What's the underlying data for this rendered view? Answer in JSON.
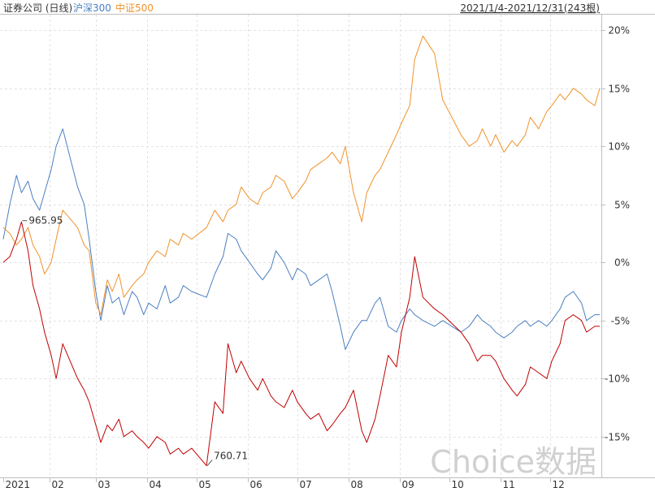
{
  "header": {
    "title": "证券公司 (日线)",
    "legend": [
      {
        "name": "沪深300",
        "color": "#4a7fc1"
      },
      {
        "name": "中证500",
        "color": "#f0922a"
      }
    ],
    "range": "2021/1/4-2021/12/31(243根)"
  },
  "watermark": "Choice数据",
  "chart_data": {
    "type": "line",
    "x_tick_labels": [
      "2021",
      "02",
      "03",
      "04",
      "05",
      "06",
      "07",
      "08",
      "09",
      "10",
      "11",
      "12"
    ],
    "y_tick_labels": [
      "20%",
      "15%",
      "10%",
      "5%",
      "0%",
      "-5%",
      "-10%",
      "-15%"
    ],
    "y_tick_values": [
      20,
      15,
      10,
      5,
      0,
      -5,
      -10,
      -15
    ],
    "y_tick_colors": [
      "#333333",
      "#333333",
      "#333333",
      "#333333",
      "#333333",
      "#1a8a1a",
      "#1a8a1a",
      "#1a8a1a"
    ],
    "ylim": [
      -18.3,
      21.2
    ],
    "annotations": [
      {
        "text": "965.95",
        "x": "2021-01-15",
        "y": 3.6
      },
      {
        "text": "760.71",
        "x": "2021-05-07",
        "y": -17.5
      }
    ],
    "series": [
      {
        "name": "证券公司",
        "color": "#c00000",
        "x": [
          "2021-01-04",
          "2021-01-08",
          "2021-01-12",
          "2021-01-15",
          "2021-01-19",
          "2021-01-22",
          "2021-01-26",
          "2021-01-29",
          "2021-02-02",
          "2021-02-05",
          "2021-02-09",
          "2021-02-18",
          "2021-02-22",
          "2021-02-25",
          "2021-03-01",
          "2021-03-04",
          "2021-03-08",
          "2021-03-11",
          "2021-03-15",
          "2021-03-18",
          "2021-03-23",
          "2021-03-26",
          "2021-03-30",
          "2021-04-02",
          "2021-04-07",
          "2021-04-12",
          "2021-04-15",
          "2021-04-20",
          "2021-04-23",
          "2021-04-28",
          "2021-05-07",
          "2021-05-12",
          "2021-05-17",
          "2021-05-20",
          "2021-05-25",
          "2021-05-28",
          "2021-06-02",
          "2021-06-07",
          "2021-06-10",
          "2021-06-15",
          "2021-06-18",
          "2021-06-23",
          "2021-06-28",
          "2021-07-01",
          "2021-07-06",
          "2021-07-09",
          "2021-07-14",
          "2021-07-19",
          "2021-07-22",
          "2021-07-27",
          "2021-07-30",
          "2021-08-04",
          "2021-08-09",
          "2021-08-12",
          "2021-08-17",
          "2021-08-20",
          "2021-08-25",
          "2021-08-30",
          "2021-09-02",
          "2021-09-07",
          "2021-09-10",
          "2021-09-15",
          "2021-09-22",
          "2021-09-27",
          "2021-10-08",
          "2021-10-13",
          "2021-10-18",
          "2021-10-21",
          "2021-10-26",
          "2021-10-29",
          "2021-11-03",
          "2021-11-08",
          "2021-11-11",
          "2021-11-16",
          "2021-11-19",
          "2021-11-24",
          "2021-11-29",
          "2021-12-02",
          "2021-12-07",
          "2021-12-10",
          "2021-12-15",
          "2021-12-20",
          "2021-12-23",
          "2021-12-28",
          "2021-12-31"
        ],
        "values": [
          0.0,
          0.5,
          2.0,
          3.5,
          1.0,
          -2.0,
          -4.0,
          -6.0,
          -8.0,
          -10.0,
          -7.0,
          -10.0,
          -11.0,
          -12.0,
          -14.0,
          -15.5,
          -14.0,
          -14.5,
          -13.5,
          -15.0,
          -14.5,
          -15.0,
          -15.5,
          -16.0,
          -15.0,
          -15.5,
          -16.5,
          -16.0,
          -16.5,
          -16.0,
          -17.5,
          -12.0,
          -13.0,
          -7.0,
          -9.5,
          -8.5,
          -10.0,
          -11.0,
          -10.0,
          -11.5,
          -12.0,
          -12.5,
          -11.0,
          -12.0,
          -13.0,
          -13.5,
          -13.0,
          -14.5,
          -14.0,
          -13.0,
          -12.5,
          -11.0,
          -14.5,
          -15.5,
          -13.5,
          -11.5,
          -8.0,
          -9.0,
          -6.0,
          -3.0,
          0.5,
          -3.0,
          -4.0,
          -4.5,
          -6.0,
          -7.0,
          -8.5,
          -8.0,
          -8.0,
          -8.5,
          -10.0,
          -11.0,
          -11.5,
          -10.5,
          -9.0,
          -9.5,
          -10.0,
          -8.5,
          -7.0,
          -5.0,
          -4.5,
          -5.0,
          -6.0,
          -5.5,
          -5.5
        ]
      },
      {
        "name": "沪深300",
        "color": "#4a7fc1",
        "x": [
          "2021-01-04",
          "2021-01-08",
          "2021-01-12",
          "2021-01-15",
          "2021-01-19",
          "2021-01-22",
          "2021-01-26",
          "2021-01-29",
          "2021-02-02",
          "2021-02-05",
          "2021-02-09",
          "2021-02-18",
          "2021-02-22",
          "2021-02-25",
          "2021-03-01",
          "2021-03-04",
          "2021-03-08",
          "2021-03-11",
          "2021-03-15",
          "2021-03-18",
          "2021-03-23",
          "2021-03-26",
          "2021-03-30",
          "2021-04-02",
          "2021-04-07",
          "2021-04-12",
          "2021-04-15",
          "2021-04-20",
          "2021-04-23",
          "2021-04-28",
          "2021-05-07",
          "2021-05-12",
          "2021-05-17",
          "2021-05-20",
          "2021-05-25",
          "2021-05-28",
          "2021-06-02",
          "2021-06-07",
          "2021-06-10",
          "2021-06-15",
          "2021-06-18",
          "2021-06-23",
          "2021-06-28",
          "2021-07-01",
          "2021-07-06",
          "2021-07-09",
          "2021-07-14",
          "2021-07-19",
          "2021-07-22",
          "2021-07-27",
          "2021-07-30",
          "2021-08-04",
          "2021-08-09",
          "2021-08-12",
          "2021-08-17",
          "2021-08-20",
          "2021-08-25",
          "2021-08-30",
          "2021-09-02",
          "2021-09-07",
          "2021-09-10",
          "2021-09-15",
          "2021-09-22",
          "2021-09-27",
          "2021-10-08",
          "2021-10-13",
          "2021-10-18",
          "2021-10-21",
          "2021-10-26",
          "2021-10-29",
          "2021-11-03",
          "2021-11-08",
          "2021-11-11",
          "2021-11-16",
          "2021-11-19",
          "2021-11-24",
          "2021-11-29",
          "2021-12-02",
          "2021-12-07",
          "2021-12-10",
          "2021-12-15",
          "2021-12-20",
          "2021-12-23",
          "2021-12-28",
          "2021-12-31"
        ],
        "values": [
          2.0,
          5.0,
          7.5,
          6.0,
          7.0,
          5.5,
          4.5,
          6.0,
          8.0,
          10.0,
          11.5,
          6.5,
          5.0,
          2.0,
          -2.5,
          -5.0,
          -2.0,
          -3.5,
          -3.0,
          -4.5,
          -2.5,
          -3.0,
          -4.5,
          -3.5,
          -4.0,
          -2.0,
          -3.5,
          -3.0,
          -2.0,
          -2.5,
          -3.0,
          -1.0,
          0.5,
          2.5,
          2.0,
          1.0,
          0.0,
          -1.0,
          -1.5,
          -0.5,
          1.0,
          0.0,
          -1.5,
          -0.5,
          -1.0,
          -2.0,
          -1.5,
          -1.0,
          -2.5,
          -5.5,
          -7.5,
          -6.0,
          -5.0,
          -5.0,
          -3.5,
          -3.0,
          -5.5,
          -6.0,
          -5.0,
          -4.0,
          -4.5,
          -5.0,
          -5.5,
          -5.0,
          -6.0,
          -5.5,
          -4.5,
          -5.0,
          -5.5,
          -6.0,
          -6.5,
          -6.0,
          -5.5,
          -5.0,
          -5.5,
          -5.0,
          -5.5,
          -5.0,
          -4.0,
          -3.0,
          -2.5,
          -3.5,
          -5.0,
          -4.5,
          -4.5
        ]
      },
      {
        "name": "中证500",
        "color": "#f0922a",
        "x": [
          "2021-01-04",
          "2021-01-08",
          "2021-01-12",
          "2021-01-15",
          "2021-01-19",
          "2021-01-22",
          "2021-01-26",
          "2021-01-29",
          "2021-02-02",
          "2021-02-05",
          "2021-02-09",
          "2021-02-18",
          "2021-02-22",
          "2021-02-25",
          "2021-03-01",
          "2021-03-04",
          "2021-03-08",
          "2021-03-11",
          "2021-03-15",
          "2021-03-18",
          "2021-03-23",
          "2021-03-26",
          "2021-03-30",
          "2021-04-02",
          "2021-04-07",
          "2021-04-12",
          "2021-04-15",
          "2021-04-20",
          "2021-04-23",
          "2021-04-28",
          "2021-05-07",
          "2021-05-12",
          "2021-05-17",
          "2021-05-20",
          "2021-05-25",
          "2021-05-28",
          "2021-06-02",
          "2021-06-07",
          "2021-06-10",
          "2021-06-15",
          "2021-06-18",
          "2021-06-23",
          "2021-06-28",
          "2021-07-01",
          "2021-07-06",
          "2021-07-09",
          "2021-07-14",
          "2021-07-19",
          "2021-07-22",
          "2021-07-27",
          "2021-07-30",
          "2021-08-04",
          "2021-08-09",
          "2021-08-12",
          "2021-08-17",
          "2021-08-20",
          "2021-08-25",
          "2021-08-30",
          "2021-09-02",
          "2021-09-07",
          "2021-09-10",
          "2021-09-15",
          "2021-09-22",
          "2021-09-27",
          "2021-10-08",
          "2021-10-13",
          "2021-10-18",
          "2021-10-21",
          "2021-10-26",
          "2021-10-29",
          "2021-11-03",
          "2021-11-08",
          "2021-11-11",
          "2021-11-16",
          "2021-11-19",
          "2021-11-24",
          "2021-11-29",
          "2021-12-02",
          "2021-12-07",
          "2021-12-10",
          "2021-12-15",
          "2021-12-20",
          "2021-12-23",
          "2021-12-28",
          "2021-12-31"
        ],
        "values": [
          3.0,
          2.5,
          1.5,
          2.0,
          3.0,
          1.5,
          0.5,
          -1.0,
          0.0,
          2.0,
          4.5,
          3.0,
          1.5,
          1.0,
          -3.5,
          -4.5,
          -1.5,
          -2.5,
          -1.0,
          -3.0,
          -2.0,
          -1.5,
          -1.0,
          0.0,
          1.0,
          0.5,
          2.0,
          1.5,
          2.5,
          2.0,
          3.0,
          4.5,
          3.5,
          4.5,
          5.0,
          6.5,
          5.5,
          5.0,
          6.0,
          6.5,
          7.5,
          7.0,
          5.5,
          6.0,
          7.0,
          8.0,
          8.5,
          9.0,
          9.5,
          8.5,
          10.0,
          6.0,
          3.5,
          6.0,
          7.5,
          8.0,
          9.5,
          11.0,
          12.0,
          13.5,
          17.5,
          19.5,
          18.0,
          14.0,
          11.0,
          10.0,
          10.5,
          11.5,
          10.0,
          11.0,
          9.5,
          10.5,
          10.0,
          11.0,
          12.5,
          11.5,
          13.0,
          13.5,
          14.5,
          14.0,
          15.0,
          14.5,
          14.0,
          13.5,
          15.0
        ]
      }
    ]
  }
}
